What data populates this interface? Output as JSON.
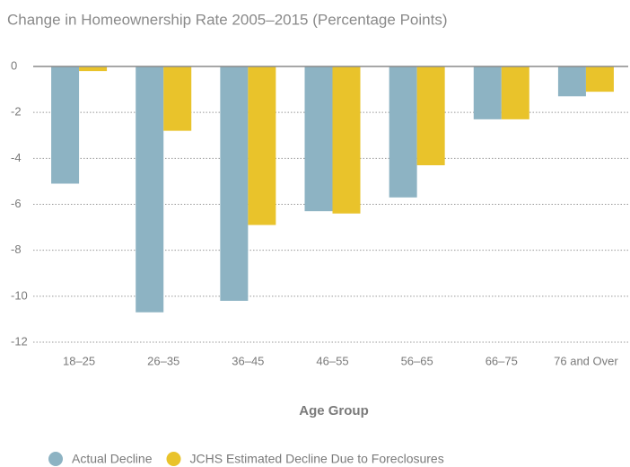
{
  "chart_data": {
    "type": "bar",
    "title": "Change in Homeownership Rate 2005–2015 (Percentage Points)",
    "x_label": "Age Group",
    "categories": [
      "18–25",
      "26–35",
      "36–45",
      "46–55",
      "56–65",
      "66–75",
      "76 and Over"
    ],
    "series": [
      {
        "name": "Actual Decline",
        "color": "#8db3c3",
        "values": [
          -5.1,
          -10.7,
          -10.2,
          -6.3,
          -5.7,
          -2.3,
          -1.3
        ]
      },
      {
        "name": "JCHS Estimated Decline Due to Foreclosures",
        "color": "#e9c32b",
        "values": [
          -0.2,
          -2.8,
          -6.9,
          -6.4,
          -4.3,
          -2.3,
          -1.1
        ]
      }
    ],
    "ylim": [
      -12,
      0
    ],
    "yticks": [
      0,
      -2,
      -4,
      -6,
      -8,
      -10,
      -12
    ],
    "grid": true
  }
}
